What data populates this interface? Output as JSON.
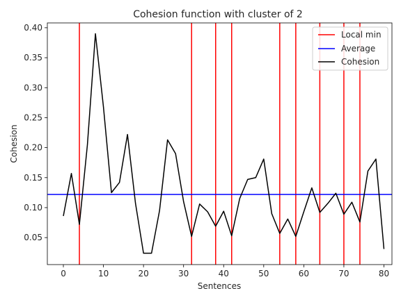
{
  "chart_data": {
    "type": "line",
    "title": "Cohesion function with cluster of 2",
    "xlabel": "Sentences",
    "ylabel": "Cohesion",
    "xlim": [
      -4,
      82
    ],
    "ylim": [
      0.005,
      0.408
    ],
    "xticks": [
      0,
      10,
      20,
      30,
      40,
      50,
      60,
      70,
      80
    ],
    "yticks": [
      0.05,
      0.1,
      0.15,
      0.2,
      0.25,
      0.3,
      0.35,
      0.4
    ],
    "ytick_labels": [
      "0.05",
      "0.10",
      "0.15",
      "0.20",
      "0.25",
      "0.30",
      "0.35",
      "0.40"
    ],
    "legend_position": "top-right",
    "grid": false,
    "series": [
      {
        "name": "Cohesion",
        "color": "#000000",
        "x": [
          0,
          2,
          4,
          6,
          8,
          10,
          12,
          14,
          16,
          18,
          20,
          22,
          24,
          26,
          28,
          30,
          32,
          34,
          36,
          38,
          40,
          42,
          44,
          46,
          48,
          50,
          52,
          54,
          56,
          58,
          60,
          62,
          64,
          66,
          68,
          70,
          72,
          74,
          76,
          78,
          80
        ],
        "y": [
          0.086,
          0.157,
          0.072,
          0.205,
          0.39,
          0.268,
          0.125,
          0.142,
          0.222,
          0.107,
          0.024,
          0.024,
          0.095,
          0.213,
          0.19,
          0.11,
          0.052,
          0.106,
          0.093,
          0.069,
          0.094,
          0.053,
          0.115,
          0.147,
          0.15,
          0.181,
          0.09,
          0.057,
          0.081,
          0.052,
          0.093,
          0.133,
          0.092,
          0.107,
          0.124,
          0.089,
          0.109,
          0.076,
          0.161,
          0.181,
          0.031
        ]
      }
    ],
    "average": {
      "name": "Average",
      "value": 0.122,
      "color": "#0000ff"
    },
    "local_min": {
      "name": "Local min",
      "x": [
        4,
        32,
        38,
        42,
        54,
        58,
        64,
        70,
        74
      ],
      "color": "#ff0000"
    }
  }
}
